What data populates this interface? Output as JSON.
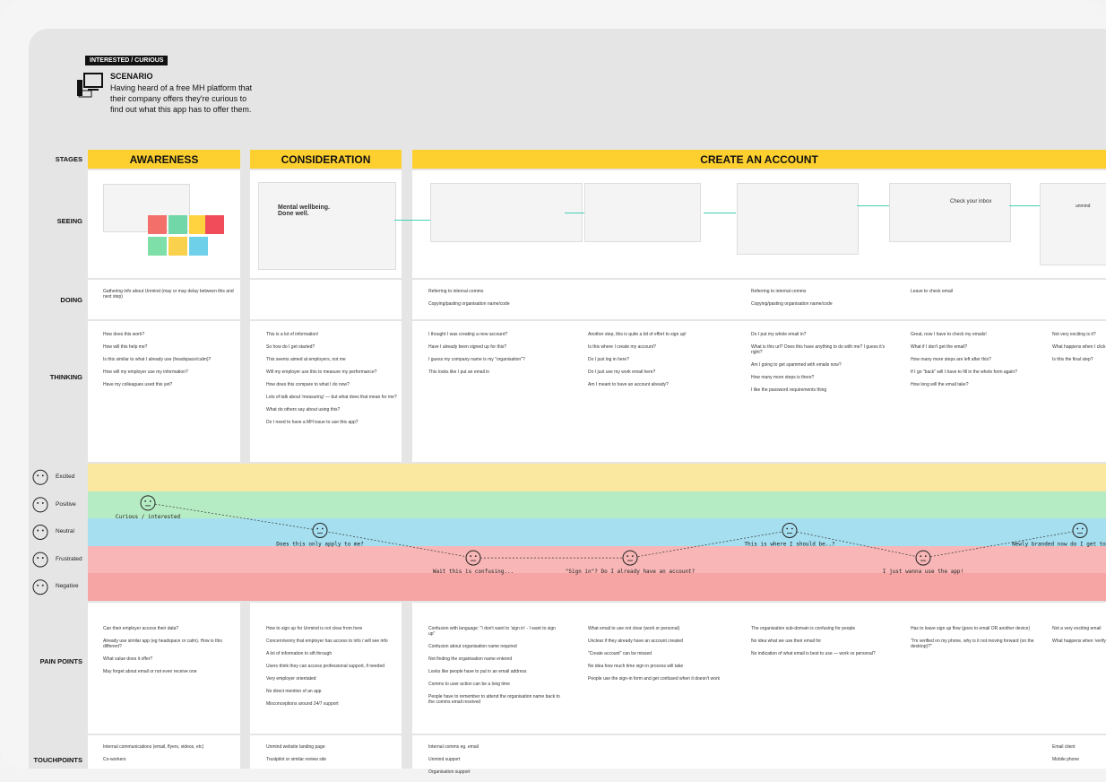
{
  "header": {
    "badge": "INTERESTED / CURIOUS",
    "scenario_title": "SCENARIO",
    "scenario_text": [
      "Having heard of a free MH platform that",
      "their company offers they're curious to",
      "find out what this app has to offer them."
    ]
  },
  "row_labels": {
    "stages": "STAGES",
    "seeing": "SEEING",
    "doing": "DOING",
    "thinking": "THINKING",
    "pain_points": "PAIN POINTS",
    "touchpoints": "TOUCHPOINTS"
  },
  "stages": [
    "AWARENESS",
    "CONSIDERATION",
    "CREATE AN ACCOUNT"
  ],
  "emotions": [
    "Excited",
    "Positive",
    "Neutral",
    "Frustrated",
    "Negative"
  ],
  "seeing": {
    "headline": "Mental wellbeing. Done well.",
    "inbox": "Check your inbox",
    "brand": "unmind"
  },
  "columns": [
    {
      "doing": [
        "Gathering info about Unmind (may or may delay between this and next step)"
      ],
      "thinking": [
        "How does this work?",
        "How will this help me?",
        "Is this similar to what I already use (headspace/calm)?",
        "How will my employer use my information?",
        "Have my colleagues used this yet?"
      ],
      "emotion": 1,
      "feeling": "Curious / interested",
      "pain_points": [
        "Can their employer access their data?",
        "Already use similar app (eg headspace or calm). How is this different?",
        "What value does it offer?",
        "May forget about email or not even receive one"
      ],
      "touchpoints": [
        "Internal communications (email, flyers, videos, etc)",
        "Co-workers"
      ]
    },
    {
      "doing": [],
      "thinking": [
        "This is a lot of information!",
        "So how do I get started?",
        "This seems aimed at employers, not me",
        "Will my employer use this to measure my performance?",
        "How does this compare to what I do now?",
        "Lots of talk about 'measuring' — but what does that mean for me?",
        "What do others say about using this?",
        "Do I need to have a MH issue to use this app?"
      ],
      "emotion": 2,
      "feeling": "Does this only apply to me?",
      "pain_points": [
        "How to sign up for Unmind is not clear from here",
        "Concern/worry that employer has access to info / will see info",
        "A lot of information to sift through",
        "Users think they can access professional support, if needed",
        "Very employer orientated",
        "No direct mention of an app",
        "Misconceptions around 24/7 support"
      ],
      "touchpoints": [
        "Unmind website landing page",
        "Trustpilot or similar review site"
      ]
    },
    {
      "doing": [
        "Referring to internal comms",
        "Copying/pasting organisation name/code"
      ],
      "thinking": [
        "I thought I was creating a new account?",
        "Have I already been signed up for this?",
        "I guess my company name is my \"organisation\"?",
        "This looks like I put an email in"
      ],
      "emotion": 3,
      "feeling": "Wait this is confusing...",
      "pain_points": [
        "Confusion with language: \"I don't want to 'sign in' - I want to sign up\"",
        "Confusion about organisation name required",
        "Not finding the organisation name entered",
        "Looks like people have to put in an email address",
        "Comms to user action can be a long time",
        "People have to remember to attend the organisation name back to the comms email received"
      ],
      "touchpoints": [
        "Internal comms eg. email",
        "Unmind support",
        "Organisation support"
      ]
    },
    {
      "doing": [],
      "thinking": [
        "Another step, this is quite a bit of effort to sign up!",
        "Is this where I create my account?",
        "Do I just log in here?",
        "Do I just use my work email here?",
        "Am I meant to have an account already?"
      ],
      "emotion": 3,
      "feeling": "\"Sign in\"? Do I already have an account?",
      "pain_points": [
        "What email to use not clear (work or personal)",
        "Unclear if they already have an account created",
        "\"Create account\" can be missed",
        "No idea how much time sign in process will take",
        "People use the sign-in form and get confused when it doesn't work"
      ],
      "touchpoints": []
    },
    {
      "doing": [
        "Referring to internal comms",
        "Copying/pasting organisation name/code"
      ],
      "thinking": [
        "Do I put my whole email in?",
        "What is this url? Does this have anything to do with me? I guess it's right?",
        "Am I going to get spammed with emails now?",
        "How many more steps is there?",
        "I like the password requirements thing"
      ],
      "emotion": 2,
      "feeling": "This is where I should be..?",
      "pain_points": [
        "The organisation sub-domain is confusing for people",
        "No idea what we use their email for",
        "No indication of what email is best to use — work vs personal?"
      ],
      "touchpoints": []
    },
    {
      "doing": [
        "Leave to check email"
      ],
      "thinking": [
        "Great, now I have to check my emails!",
        "What if I don't get the email?",
        "How many more steps are left after this?",
        "If I go \"back\" will I have to fill in the whole form again?",
        "How long will the email take?"
      ],
      "emotion": 3,
      "feeling": "I just wanna use the app!",
      "pain_points": [
        "Has to leave sign up flow (goes to email OR another device)",
        "\"I'm verified on my phone, why is it not moving forward (on the desktop)?\""
      ],
      "touchpoints": []
    },
    {
      "doing": [],
      "thinking": [
        "Not very exciting is it?",
        "What happens when I click \"V...",
        "Is this the final step?"
      ],
      "emotion": 2,
      "feeling": "Newly branded now do I get to see the app?",
      "pain_points": [
        "Not a very exciting email",
        "What happens when 'verify'..."
      ],
      "touchpoints": [
        "Email client",
        "Mobile phone"
      ]
    }
  ]
}
